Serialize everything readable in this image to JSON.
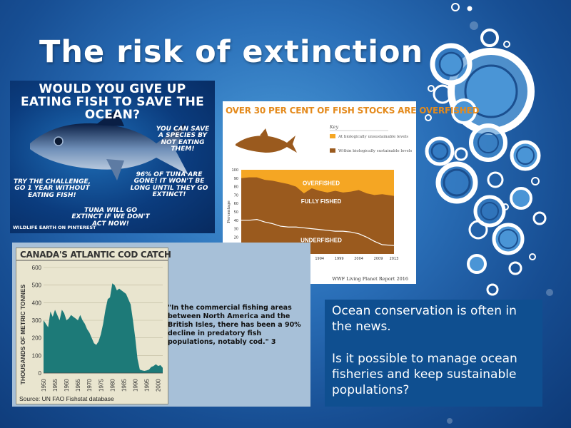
{
  "slide": {
    "title": "The risk of extinction",
    "text_box": {
      "line1": "Ocean conservation is often in the news.",
      "line2": "Is it possible to manage ocean fisheries and keep sustainable populations?"
    }
  },
  "poster": {
    "heading": "WOULD YOU GIVE UP EATING FISH TO SAVE THE OCEAN?",
    "save_text": "YOU CAN SAVE A SPECIES BY NOT EATING THEM!",
    "challenge_text": "TRY THE CHALLENGE, GO 1 YEAR WITHOUT EATING FISH!",
    "tuna_text": "96% OF TUNA ARE GONE! IT WON'T BE LONG UNTIL THEY GO EXTINCT!",
    "extinct_text": "TUNA WILL GO EXTINCT IF WE DON'T ACT NOW!",
    "credit": "WILDLIFE EARTH ON PINTEREST"
  },
  "cod_quote": "\"In the commercial fishing areas between North America and the British Isles, there has been a 90% decline in predatory fish populations, notably cod.\" 3",
  "colors": {
    "overfished": "#f5a623",
    "fully_fished": "#9a5a1e",
    "underfished": "#8b4c17",
    "cod_fill": "#1d7a78",
    "text_box_bg": "#0f4f90"
  },
  "chart_data": [
    {
      "type": "area",
      "title": "OVER 30 PER CENT OF FISH STOCKS ARE OVERFISHED",
      "source": "WWF Living Planet Report 2016",
      "ylabel": "Percentage",
      "ylim": [
        0,
        100
      ],
      "yticks": [
        0,
        10,
        20,
        30,
        40,
        50,
        60,
        70,
        80,
        90,
        100
      ],
      "xticks": [
        "1974",
        "1979",
        "1984",
        "1989",
        "1994",
        "1999",
        "2004",
        "2009",
        "2013"
      ],
      "key": {
        "title": "Key",
        "items": [
          "At biologically unsustainable levels",
          "Within biologically sustainable levels"
        ]
      },
      "region_labels": [
        "OVERFISHED",
        "FULLY FISHED",
        "UNDERFISHED"
      ],
      "x": [
        1974,
        1976,
        1978,
        1980,
        1982,
        1984,
        1986,
        1988,
        1990,
        1992,
        1994,
        1996,
        1998,
        2000,
        2002,
        2004,
        2006,
        2008,
        2010,
        2013
      ],
      "series": [
        {
          "name": "Within biologically sustainable levels",
          "values": [
            90,
            91,
            91,
            88,
            87,
            85,
            83,
            80,
            72,
            78,
            75,
            73,
            75,
            73,
            74,
            76,
            72,
            70,
            71,
            69
          ]
        },
        {
          "name": "Underfished",
          "values": [
            40,
            40,
            41,
            38,
            36,
            33,
            32,
            32,
            31,
            30,
            29,
            28,
            27,
            27,
            26,
            24,
            20,
            15,
            11,
            10
          ]
        }
      ]
    },
    {
      "type": "area",
      "title": "CANADA'S ATLANTIC COD CATCH",
      "ylabel": "THOUSANDS OF METRIC TONNES",
      "source": "Source: UN FAO Fishstat database",
      "ylim": [
        0,
        600
      ],
      "yticks": [
        0,
        100,
        200,
        300,
        400,
        500,
        600
      ],
      "xticks": [
        "1950",
        "1955",
        "1960",
        "1965",
        "1970",
        "1975",
        "1980",
        "1985",
        "1990",
        "1995",
        "2000"
      ],
      "x": [
        1950,
        1951,
        1952,
        1953,
        1954,
        1955,
        1956,
        1957,
        1958,
        1959,
        1960,
        1961,
        1962,
        1963,
        1964,
        1965,
        1966,
        1967,
        1968,
        1969,
        1970,
        1971,
        1972,
        1973,
        1974,
        1975,
        1976,
        1977,
        1978,
        1979,
        1980,
        1981,
        1982,
        1983,
        1984,
        1985,
        1986,
        1987,
        1988,
        1989,
        1990,
        1991,
        1992,
        1993,
        1994,
        1995,
        1996,
        1997,
        1998,
        1999,
        2000,
        2001,
        2002
      ],
      "values": [
        300,
        280,
        260,
        350,
        320,
        360,
        330,
        300,
        360,
        340,
        300,
        310,
        330,
        320,
        310,
        300,
        330,
        300,
        280,
        250,
        230,
        200,
        170,
        160,
        180,
        220,
        280,
        360,
        420,
        430,
        510,
        500,
        470,
        480,
        470,
        460,
        450,
        420,
        390,
        300,
        200,
        80,
        20,
        15,
        12,
        15,
        20,
        35,
        40,
        50,
        40,
        45,
        30
      ]
    }
  ]
}
